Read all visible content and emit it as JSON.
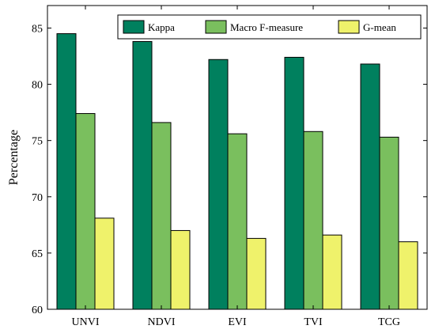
{
  "chart_data": {
    "type": "bar",
    "title": "",
    "xlabel": "",
    "ylabel": "Percentage",
    "ylim": [
      60,
      87
    ],
    "yticks": [
      60,
      65,
      70,
      75,
      80,
      85
    ],
    "categories": [
      "UNVI",
      "NDVI",
      "EVI",
      "TVI",
      "TCG"
    ],
    "series": [
      {
        "name": "Kappa",
        "color": "#00805e",
        "values": [
          84.5,
          83.8,
          82.2,
          82.4,
          81.8
        ]
      },
      {
        "name": "Macro F-measure",
        "color": "#7abf5e",
        "values": [
          77.4,
          76.6,
          75.6,
          75.8,
          75.3
        ]
      },
      {
        "name": "G-mean",
        "color": "#eff26b",
        "values": [
          68.1,
          67.0,
          66.3,
          66.6,
          66.0
        ]
      }
    ],
    "grid": false,
    "legend_position": "top-right"
  }
}
